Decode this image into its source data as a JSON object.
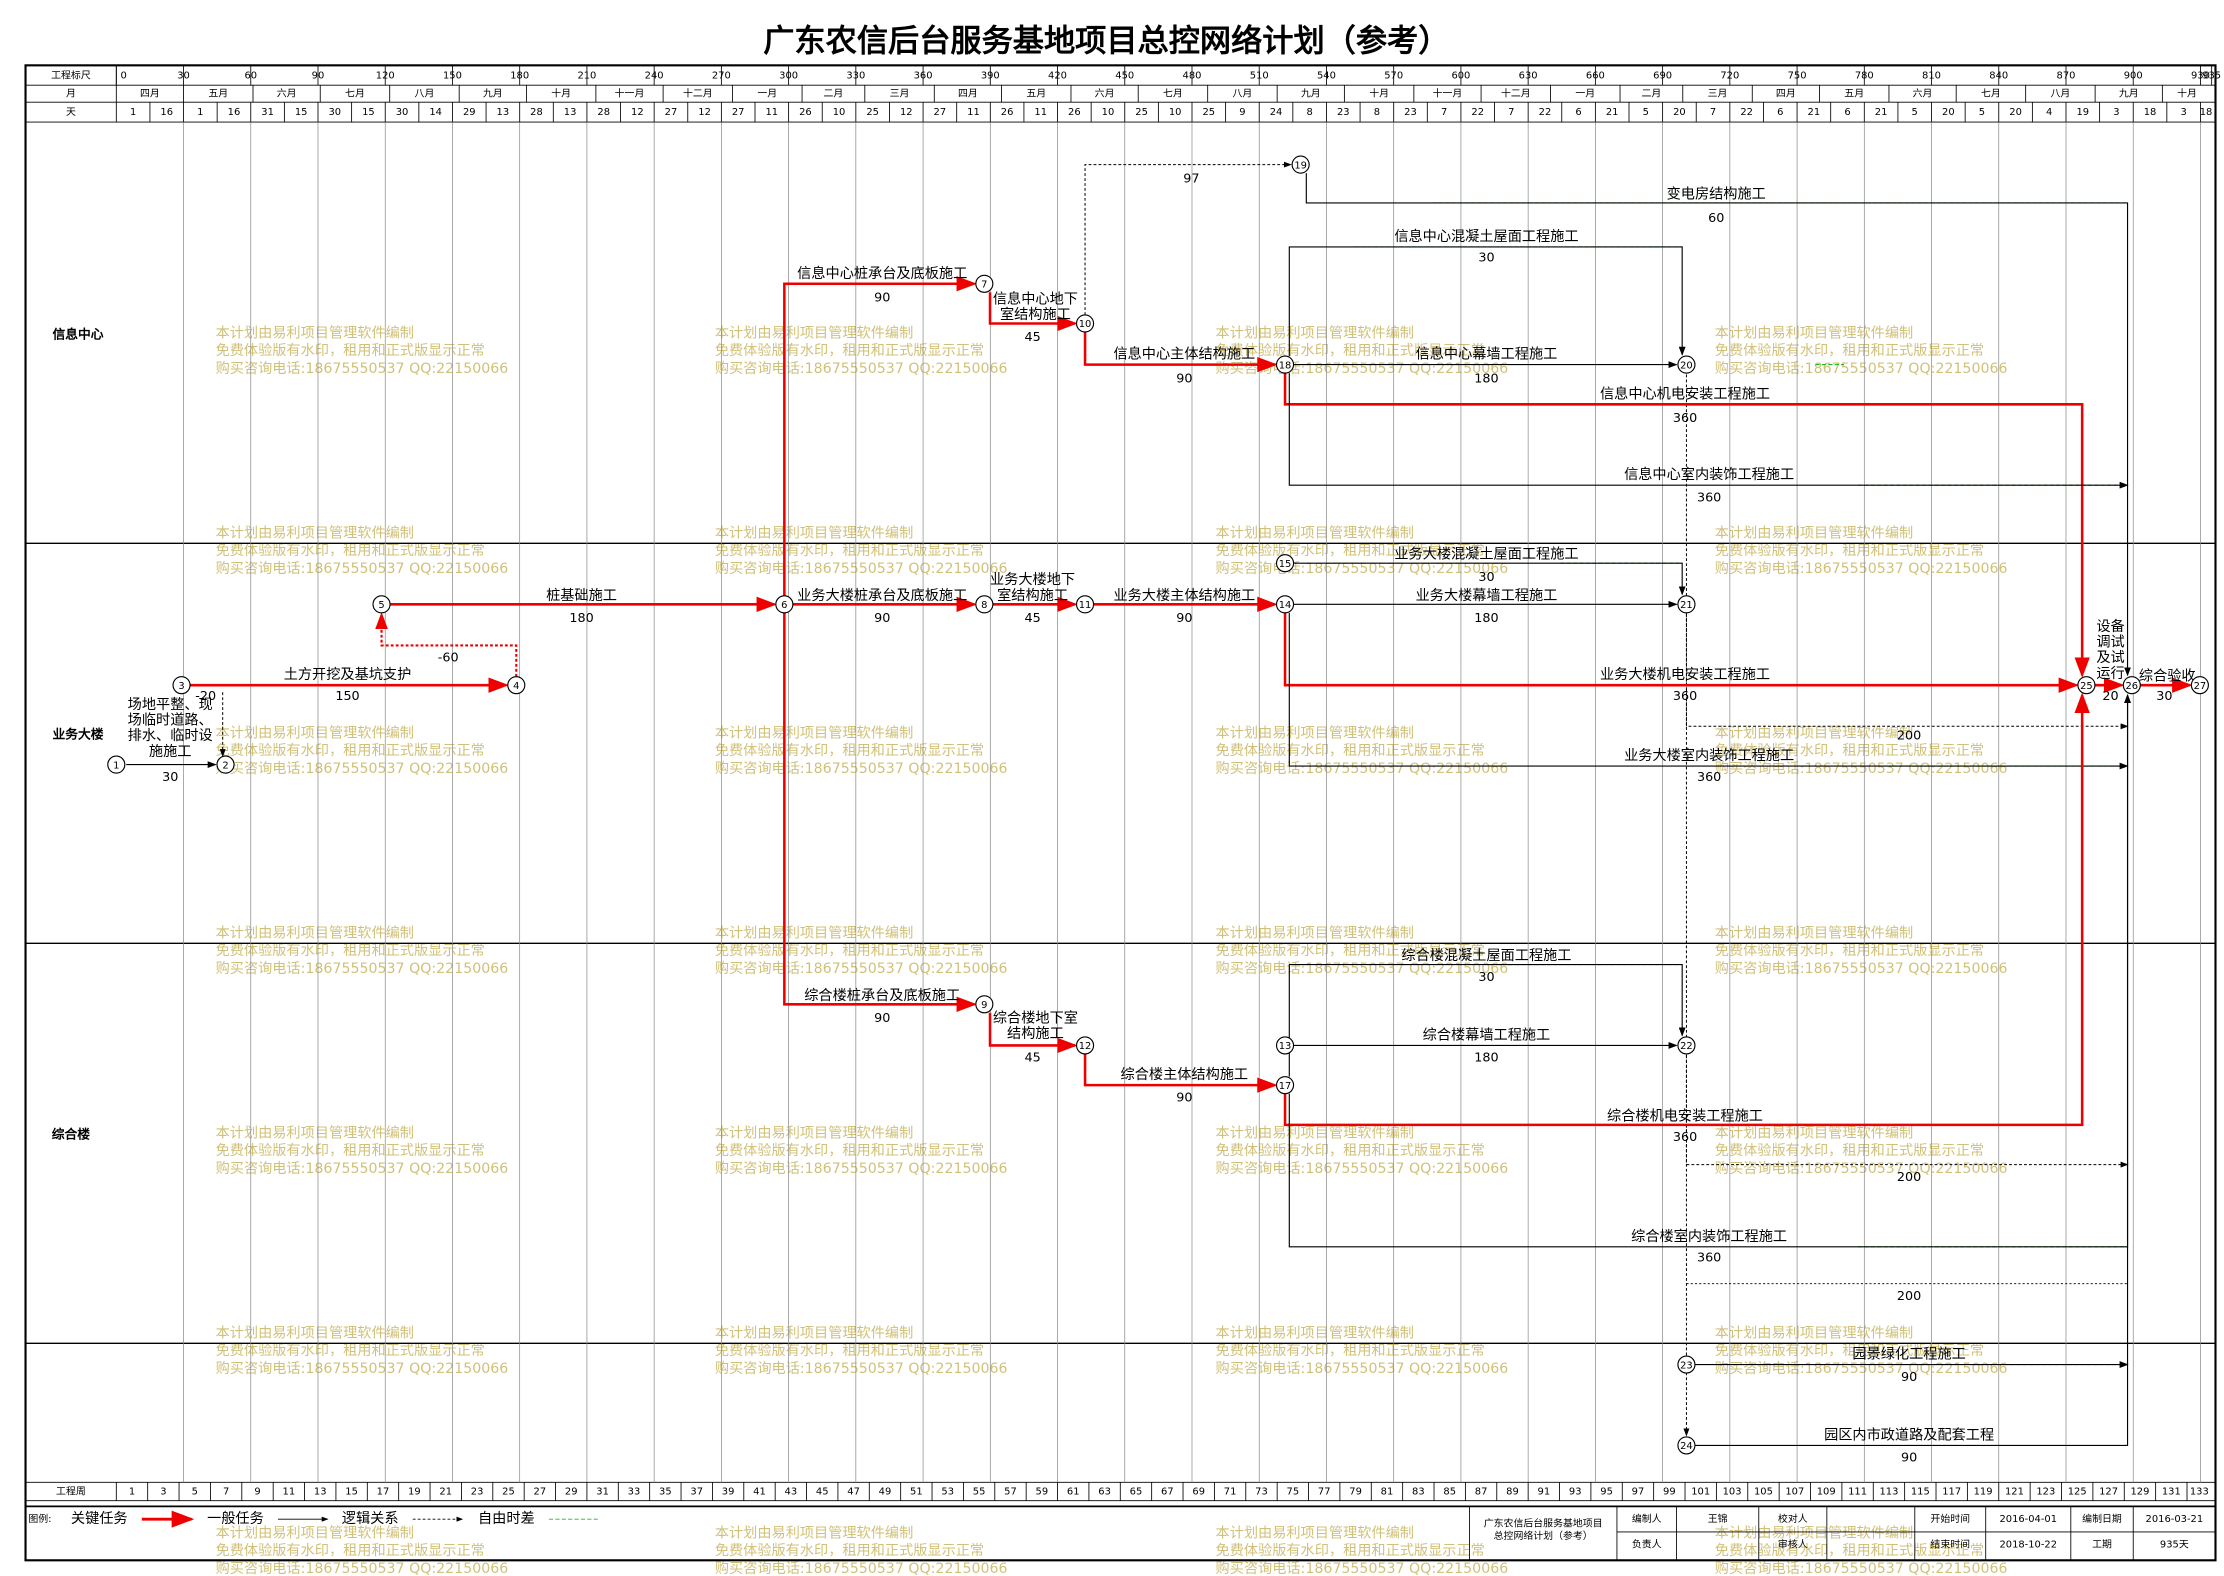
{
  "title": "广东农信后台服务基地项目总控网络计划（参考）",
  "header": {
    "scale_label": "工程标尺",
    "month_label": "月",
    "day_label": "天",
    "scale_ticks": [
      0,
      30,
      60,
      90,
      120,
      150,
      180,
      210,
      240,
      270,
      300,
      330,
      360,
      390,
      420,
      450,
      480,
      510,
      540,
      570,
      600,
      630,
      660,
      690,
      720,
      750,
      780,
      810,
      840,
      870,
      900,
      930,
      935
    ],
    "months": [
      "四月",
      "五月",
      "六月",
      "七月",
      "八月",
      "九月",
      "十月",
      "十一月",
      "十二月",
      "一月",
      "二月",
      "三月",
      "四月",
      "五月",
      "六月",
      "七月",
      "八月",
      "九月",
      "十月",
      "十一月",
      "十二月",
      "一月",
      "二月",
      "三月",
      "四月",
      "五月",
      "六月",
      "七月",
      "八月",
      "九月",
      "十月"
    ],
    "days": [
      1,
      16,
      1,
      16,
      31,
      15,
      30,
      15,
      30,
      14,
      29,
      13,
      28,
      13,
      28,
      12,
      27,
      12,
      27,
      11,
      26,
      10,
      25,
      12,
      27,
      11,
      26,
      11,
      26,
      10,
      25,
      10,
      25,
      9,
      24,
      8,
      23,
      8,
      23,
      7,
      22,
      7,
      22,
      6,
      21,
      5,
      20,
      7,
      22,
      6,
      21,
      6,
      21,
      5,
      20,
      5,
      20,
      4,
      19,
      3,
      18,
      3,
      18
    ]
  },
  "lanes": [
    "信息中心",
    "业务大楼",
    "综合楼"
  ],
  "nodes": [
    1,
    2,
    3,
    4,
    5,
    6,
    7,
    8,
    9,
    10,
    11,
    12,
    13,
    14,
    15,
    17,
    18,
    19,
    20,
    21,
    22,
    23,
    24,
    25,
    26,
    27
  ],
  "tasks": [
    {
      "name": "场地平整、现场临时道路、排水、临时设施施工",
      "duration": 30,
      "critical": false
    },
    {
      "name": "土方开挖及基坑支护",
      "duration": 150,
      "critical": true
    },
    {
      "name": "桩基础施工",
      "duration": 180,
      "critical": true
    },
    {
      "name": "信息中心桩承台及底板施工",
      "duration": 90,
      "critical": true
    },
    {
      "name": "信息中心地下室结构施工",
      "duration": 45,
      "critical": true
    },
    {
      "name": "信息中心主体结构施工",
      "duration": 90,
      "critical": true
    },
    {
      "name": "变电房结构施工",
      "duration": 60,
      "critical": false
    },
    {
      "name": "信息中心混凝土屋面工程施工",
      "duration": 30,
      "critical": false
    },
    {
      "name": "信息中心幕墙工程施工",
      "duration": 180,
      "critical": false
    },
    {
      "name": "信息中心机电安装工程施工",
      "duration": 360,
      "critical": true
    },
    {
      "name": "信息中心室内装饰工程施工",
      "duration": 360,
      "critical": false
    },
    {
      "name": "业务大楼桩承台及底板施工",
      "duration": 90,
      "critical": true
    },
    {
      "name": "业务大楼地下室结构施工",
      "duration": 45,
      "critical": true
    },
    {
      "name": "业务大楼主体结构施工",
      "duration": 90,
      "critical": true
    },
    {
      "name": "业务大楼混凝土屋面工程施工",
      "duration": 30,
      "critical": false
    },
    {
      "name": "业务大楼幕墙工程施工",
      "duration": 180,
      "critical": false
    },
    {
      "name": "业务大楼机电安装工程施工",
      "duration": 360,
      "critical": true
    },
    {
      "name": "业务大楼室内装饰工程施工",
      "duration": 360,
      "critical": false
    },
    {
      "name": "设备调试及试运行",
      "duration": 20,
      "critical": true
    },
    {
      "name": "综合验收",
      "duration": 30,
      "critical": true
    },
    {
      "name": "综合楼桩承台及底板施工",
      "duration": 90,
      "critical": true
    },
    {
      "name": "综合楼地下室结构施工",
      "duration": 45,
      "critical": true
    },
    {
      "name": "综合楼主体结构施工",
      "duration": 90,
      "critical": true
    },
    {
      "name": "综合楼混凝土屋面工程施工",
      "duration": 30,
      "critical": false
    },
    {
      "name": "综合楼幕墙工程施工",
      "duration": 180,
      "critical": false
    },
    {
      "name": "综合楼机电安装工程施工",
      "duration": 360,
      "critical": true
    },
    {
      "name": "综合楼室内装饰工程施工",
      "duration": 360,
      "critical": false
    },
    {
      "name": "园景绿化工程施工",
      "duration": 90,
      "critical": false
    },
    {
      "name": "园区内市政道路及配套工程",
      "duration": 90,
      "critical": false
    }
  ],
  "lags": [
    -20,
    -60,
    97,
    200,
    200,
    200
  ],
  "footer": {
    "week_label": "工程周",
    "weeks": [
      1,
      3,
      5,
      7,
      9,
      11,
      13,
      15,
      17,
      19,
      21,
      23,
      25,
      27,
      29,
      31,
      33,
      35,
      37,
      39,
      41,
      43,
      45,
      47,
      49,
      51,
      53,
      55,
      57,
      59,
      61,
      63,
      65,
      67,
      69,
      71,
      73,
      75,
      77,
      79,
      81,
      83,
      85,
      87,
      89,
      91,
      93,
      95,
      97,
      99,
      101,
      103,
      105,
      107,
      109,
      111,
      113,
      115,
      117,
      119,
      121,
      123,
      125,
      127,
      129,
      131,
      133
    ],
    "legend_title": "图例:",
    "legend": [
      "关键任务",
      "一般任务",
      "逻辑关系",
      "自由时差"
    ],
    "project_name": "广东农信后台服务基地项目总控网络计划（参考）",
    "fields": [
      {
        "label": "编制人",
        "value": "王锦"
      },
      {
        "label": "校对人"
      },
      {
        "label": "开始时间",
        "value": "2016-04-01"
      },
      {
        "label": "编制日期",
        "value": "2016-03-21"
      },
      {
        "label": "负责人"
      },
      {
        "label": "审核人"
      },
      {
        "label": "结束时间",
        "value": "2018-10-22"
      },
      {
        "label": "工期",
        "value": "935天"
      }
    ]
  },
  "watermark": [
    "本计划由易利项目管理软件编制",
    "免费体验版有水印，租用和正式版显示正常",
    "购买咨询电话:18675550537 QQ:22150066"
  ]
}
